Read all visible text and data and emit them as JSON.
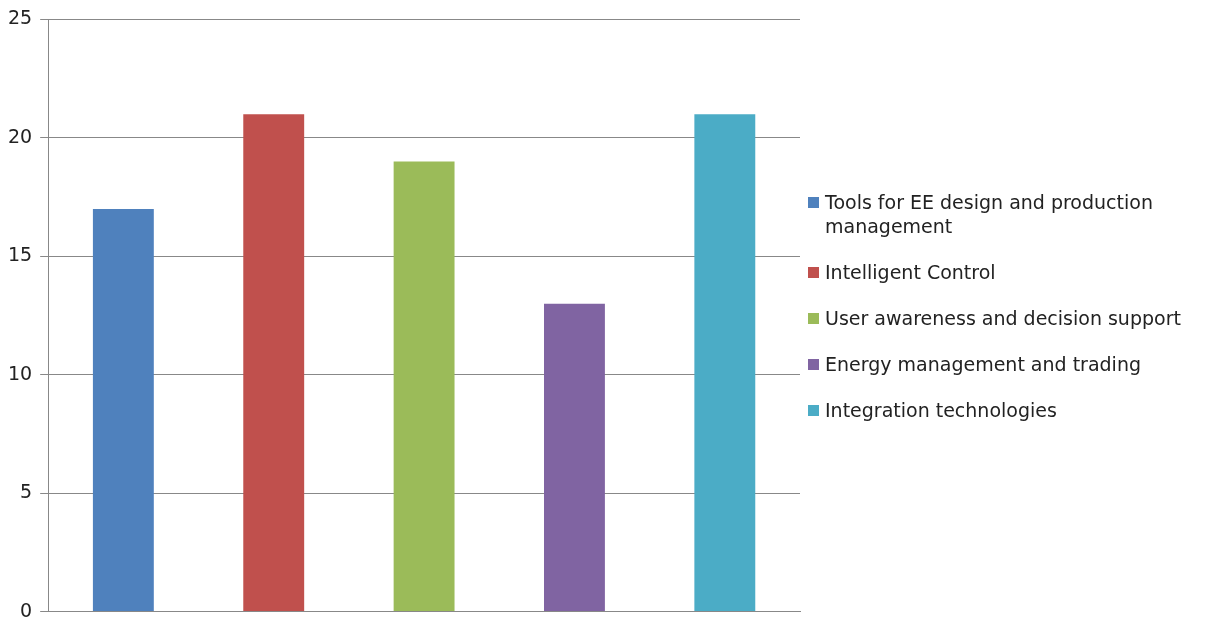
{
  "chart_data": {
    "type": "bar",
    "categories": [
      null
    ],
    "series": [
      {
        "name": "Tools for EE design and production management",
        "color": "#4f81bd",
        "values": [
          17
        ]
      },
      {
        "name": "Intelligent Control",
        "color": "#c0504d",
        "values": [
          21
        ]
      },
      {
        "name": "User awareness and decision support",
        "color": "#9bbb59",
        "values": [
          19
        ]
      },
      {
        "name": "Energy management and trading",
        "color": "#8064a2",
        "values": [
          13
        ]
      },
      {
        "name": "Integration technologies",
        "color": "#4bacc6",
        "values": [
          21
        ]
      }
    ],
    "ylim": [
      0,
      25
    ],
    "yticks": [
      0,
      5,
      10,
      15,
      20,
      25
    ],
    "grid": "y",
    "legend": "right"
  }
}
